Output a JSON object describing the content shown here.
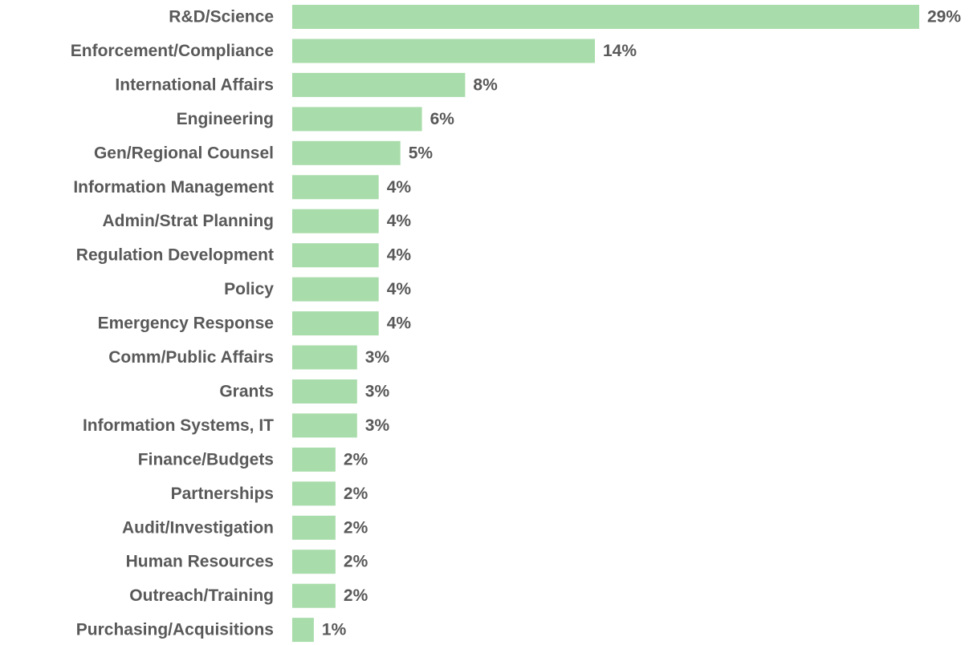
{
  "chart_data": {
    "type": "bar",
    "orientation": "horizontal",
    "title": "",
    "xlabel": "",
    "ylabel": "",
    "categories": [
      "R&D/Science",
      "Enforcement/Compliance",
      "International Affairs",
      "Engineering",
      "Gen/Regional Counsel",
      "Information Management",
      "Admin/Strat Planning",
      "Regulation Development",
      "Policy",
      "Emergency Response",
      "Comm/Public Affairs",
      "Grants",
      "Information Systems, IT",
      "Finance/Budgets",
      "Partnerships",
      "Audit/Investigation",
      "Human Resources",
      "Outreach/Training",
      "Purchasing/Acquisitions"
    ],
    "values": [
      29,
      14,
      8,
      6,
      5,
      4,
      4,
      4,
      4,
      4,
      3,
      3,
      3,
      2,
      2,
      2,
      2,
      2,
      1
    ],
    "value_labels": [
      "29%",
      "14%",
      "8%",
      "6%",
      "5%",
      "4%",
      "4%",
      "4%",
      "4%",
      "4%",
      "3%",
      "3%",
      "3%",
      "2%",
      "2%",
      "2%",
      "2%",
      "2%",
      "1%"
    ],
    "xlim": [
      0,
      29
    ],
    "grid": false,
    "legend": "none",
    "bar_color": "#a9dcab",
    "text_color": "#595959"
  }
}
